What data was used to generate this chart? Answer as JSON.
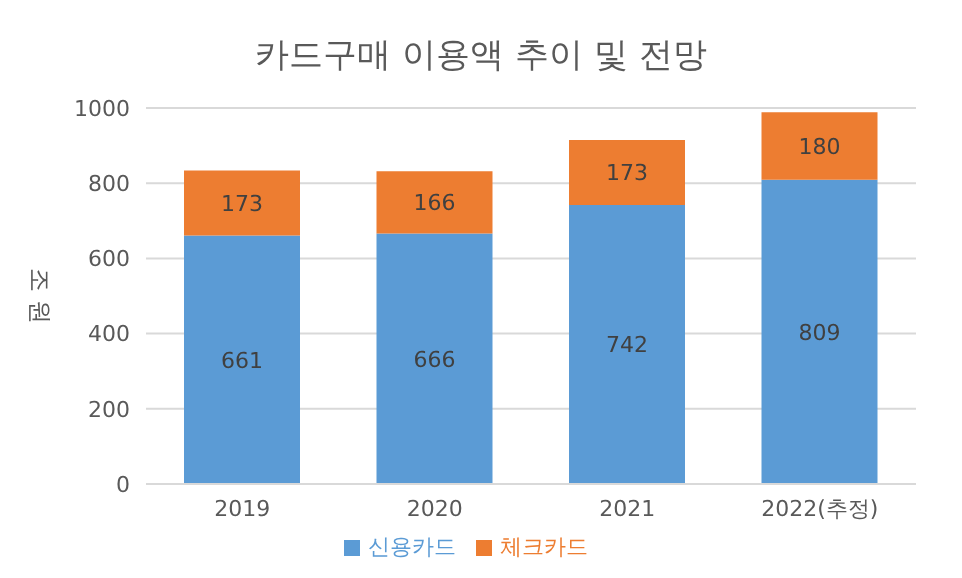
{
  "chart_data": {
    "type": "bar",
    "title": "카드구매 이용액 추이 및 전망",
    "ylabel": "조 원",
    "categories": [
      "2019",
      "2020",
      "2021",
      "2022(추정)"
    ],
    "stacked": true,
    "series": [
      {
        "name": "신용카드",
        "color": "#5b9bd5",
        "values": [
          661,
          666,
          742,
          809
        ]
      },
      {
        "name": "체크카드",
        "color": "#ed7d31",
        "values": [
          173,
          166,
          173,
          180
        ]
      }
    ],
    "ylim": [
      0,
      1000
    ],
    "yticks": [
      0,
      200,
      400,
      600,
      800,
      1000
    ],
    "grid": "y",
    "legend": "bottom",
    "data_labels": true
  }
}
